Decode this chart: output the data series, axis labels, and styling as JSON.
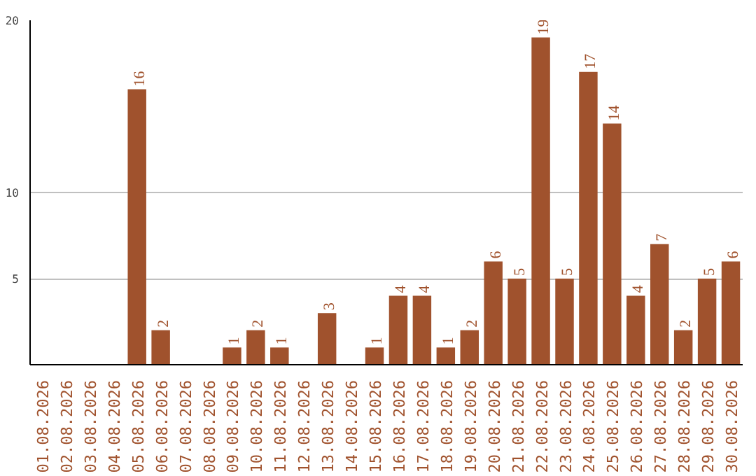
{
  "chart_data": {
    "type": "bar",
    "categories": [
      "01.08.2026",
      "02.08.2026",
      "03.08.2026",
      "04.08.2026",
      "05.08.2026",
      "06.08.2026",
      "07.08.2026",
      "08.08.2026",
      "09.08.2026",
      "10.08.2026",
      "11.08.2026",
      "12.08.2026",
      "13.08.2026",
      "14.08.2026",
      "15.08.2026",
      "16.08.2026",
      "17.08.2026",
      "18.08.2026",
      "19.08.2026",
      "20.08.2026",
      "21.08.2026",
      "22.08.2026",
      "23.08.2026",
      "24.08.2026",
      "25.08.2026",
      "26.08.2026",
      "27.08.2026",
      "28.08.2026",
      "29.08.2026",
      "30.08.2026"
    ],
    "values": [
      0,
      0,
      0,
      0,
      16,
      2,
      0,
      0,
      1,
      2,
      1,
      0,
      3,
      0,
      1,
      4,
      4,
      1,
      2,
      6,
      5,
      19,
      5,
      17,
      14,
      4,
      7,
      2,
      5,
      6
    ],
    "value_labels": [
      null,
      null,
      null,
      null,
      "16",
      "2",
      null,
      null,
      "1",
      "2",
      "1",
      null,
      "3",
      null,
      "1",
      "4",
      "4",
      "1",
      "2",
      "6",
      "5",
      "19",
      "5",
      "17",
      "14",
      "4",
      "7",
      "2",
      "5",
      "6"
    ],
    "color": "#a0522d",
    "ylim": [
      0,
      20
    ],
    "yticks": [
      5,
      10,
      20
    ],
    "grid": "y"
  }
}
